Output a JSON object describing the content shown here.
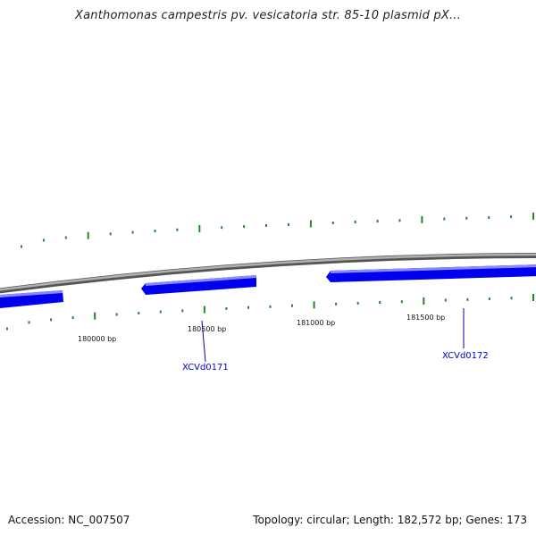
{
  "title": "Xanthomonas campestris pv. vesicatoria str. 85-10 plasmid pX...",
  "footer": {
    "accession": "Accession: NC_007507",
    "summary": "Topology: circular; Length: 182,572 bp; Genes: 173"
  },
  "colors": {
    "backbone": "#8c8c8c",
    "gene": "#0000ee",
    "gene_highlight": "#8a8aff",
    "tick": "#1f8a1f",
    "label": "#0000cc",
    "callout": "#0000aa"
  },
  "position_labels": [
    {
      "text": "180000 bp"
    },
    {
      "text": "180500 bp"
    },
    {
      "text": "181000 bp"
    },
    {
      "text": "181500 bp"
    }
  ],
  "gene_labels": [
    {
      "text": "XCVd0171"
    },
    {
      "text": "XCVd0172"
    }
  ],
  "icons": {
    "gene": "gene-arrow-icon",
    "backbone": "plasmid-backbone-icon"
  }
}
